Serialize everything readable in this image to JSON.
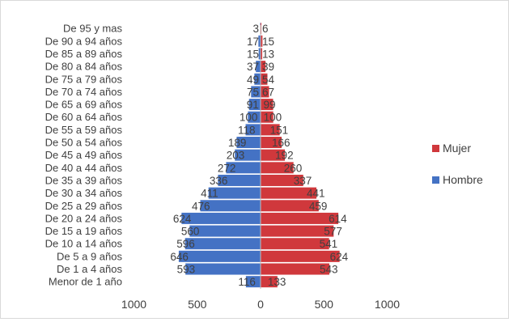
{
  "chart_data": {
    "type": "bar",
    "orientation": "horizontal",
    "title": "",
    "xlabel": "",
    "ylabel": "",
    "categories": [
      "Menor de 1 año",
      "De 1 a 4 años",
      "De 5 a 9 años",
      "De 10 a 14 años",
      "De 15 a 19 años",
      "De 20 a 24 años",
      "De 25 a 29 años",
      "De 30 a 34 años",
      "De 35 a 39 años",
      "De 40 a 44 años",
      "De 45 a 49 años",
      "De 50 a 54 años",
      "De 55 a 59 años",
      "De 60 a 64 años",
      "De 65 a 69 años",
      "De 70 a 74 años",
      "De 75 a 79 años",
      "De 80 a 84 años",
      "De 85 a 89 años",
      "De 90 a 94 años",
      "De 95 y mas"
    ],
    "series": [
      {
        "name": "Hombre",
        "color": "#4472c4",
        "values": [
          116,
          593,
          646,
          596,
          560,
          624,
          476,
          411,
          336,
          272,
          203,
          189,
          118,
          100,
          91,
          75,
          49,
          37,
          15,
          17,
          3
        ]
      },
      {
        "name": "Mujer",
        "color": "#d0383c",
        "values": [
          133,
          543,
          624,
          541,
          577,
          614,
          459,
          441,
          337,
          260,
          192,
          166,
          151,
          100,
          99,
          67,
          54,
          39,
          13,
          15,
          6
        ]
      }
    ],
    "xlim": [
      -1000,
      1000
    ],
    "x_ticks": [
      {
        "value": -1000,
        "label": "1000"
      },
      {
        "value": -500,
        "label": "500"
      },
      {
        "value": 0,
        "label": "0"
      },
      {
        "value": 500,
        "label": "500"
      },
      {
        "value": 1000,
        "label": "1000"
      }
    ],
    "grid": false,
    "legend_position": "right"
  }
}
